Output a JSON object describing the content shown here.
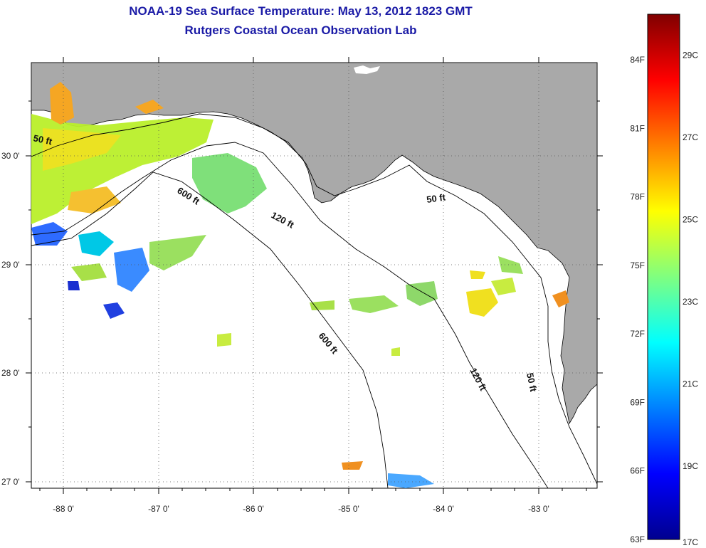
{
  "title": {
    "line1": "NOAA-19 Sea Surface Temperature:  May 13, 2012 1823 GMT",
    "line2": "Rutgers Coastal Ocean Observation Lab"
  },
  "map": {
    "lon_labels": [
      "-88 0'",
      "-87 0'",
      "-86 0'",
      "-85 0'",
      "-84 0'",
      "-83 0'"
    ],
    "lat_labels": [
      "30 0'",
      "29 0'",
      "28 0'",
      "27 0'"
    ],
    "lon_range": [
      -88.35,
      -82.3
    ],
    "lat_range": [
      26.95,
      30.85
    ],
    "contour_labels": [
      {
        "text": "50 ft",
        "lon": -88.15,
        "lat": 30.13
      },
      {
        "text": "600 ft",
        "lon": -86.75,
        "lat": 29.58
      },
      {
        "text": "120 ft",
        "lon": -85.95,
        "lat": 29.35
      },
      {
        "text": "50 ft",
        "lon": -84.02,
        "lat": 29.65
      },
      {
        "text": "600 ft",
        "lon": -85.2,
        "lat": 28.25
      },
      {
        "text": "120 ft",
        "lon": -83.6,
        "lat": 27.9
      },
      {
        "text": "50 ft",
        "lon": -82.95,
        "lat": 27.85
      }
    ],
    "colors": {
      "land": "#a9a9a9",
      "ocean": "#ffffff",
      "gridline": "#555555"
    }
  },
  "colorbar": {
    "f_labels": [
      "84F",
      "81F",
      "78F",
      "75F",
      "72F",
      "69F",
      "66F",
      "63F"
    ],
    "c_labels": [
      "29C",
      "27C",
      "25C",
      "23C",
      "21C",
      "19C",
      "17C"
    ],
    "f_range": [
      63,
      86
    ],
    "c_values": [
      29,
      27,
      25,
      23,
      21,
      19,
      17
    ],
    "c_range": [
      17.22,
      30
    ]
  }
}
